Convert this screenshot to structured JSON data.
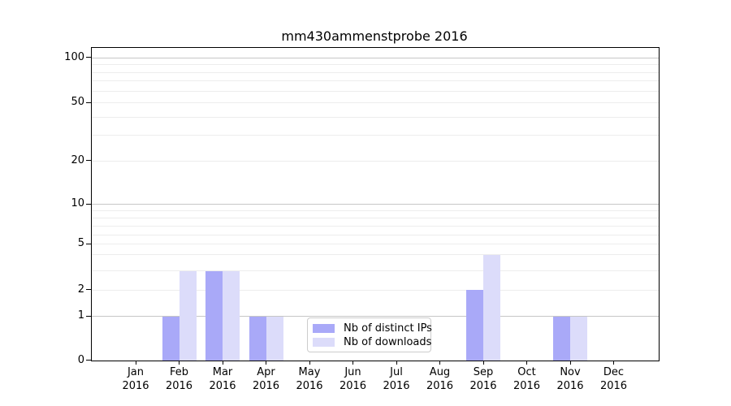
{
  "chart_data": {
    "type": "bar",
    "title": "mm430ammenstprobe 2016",
    "categories": [
      "Jan",
      "Feb",
      "Mar",
      "Apr",
      "May",
      "Jun",
      "Jul",
      "Aug",
      "Sep",
      "Oct",
      "Nov",
      "Dec"
    ],
    "category_year": "2016",
    "series": [
      {
        "name": "Nb of distinct IPs",
        "color": "#a9a9f8",
        "values": [
          0,
          1,
          3,
          1,
          0,
          0,
          0,
          0,
          2,
          0,
          1,
          0
        ]
      },
      {
        "name": "Nb of downloads",
        "color": "#dcdcfa",
        "values": [
          0,
          3,
          3,
          1,
          0,
          0,
          0,
          0,
          4,
          0,
          1,
          0
        ]
      }
    ],
    "y_ticks": [
      0,
      1,
      2,
      5,
      10,
      20,
      50,
      100
    ],
    "y_major_gridlines": [
      1,
      10,
      100
    ],
    "y_minor_gridlines": [
      2,
      3,
      4,
      5,
      6,
      7,
      8,
      9,
      20,
      30,
      40,
      50,
      60,
      70,
      80,
      90
    ],
    "y_scale": "log-like (symlog with 0)",
    "ylim": [
      0,
      115
    ],
    "xlabel": "",
    "ylabel": "",
    "grid": true,
    "legend_position": "lower center inside plot"
  },
  "colors": {
    "background": "#ffffff",
    "axis": "#000000",
    "text": "#000000",
    "grid_major": "#c6c6c6",
    "grid_minor": "#ededed",
    "legend_border": "#cccccc"
  }
}
